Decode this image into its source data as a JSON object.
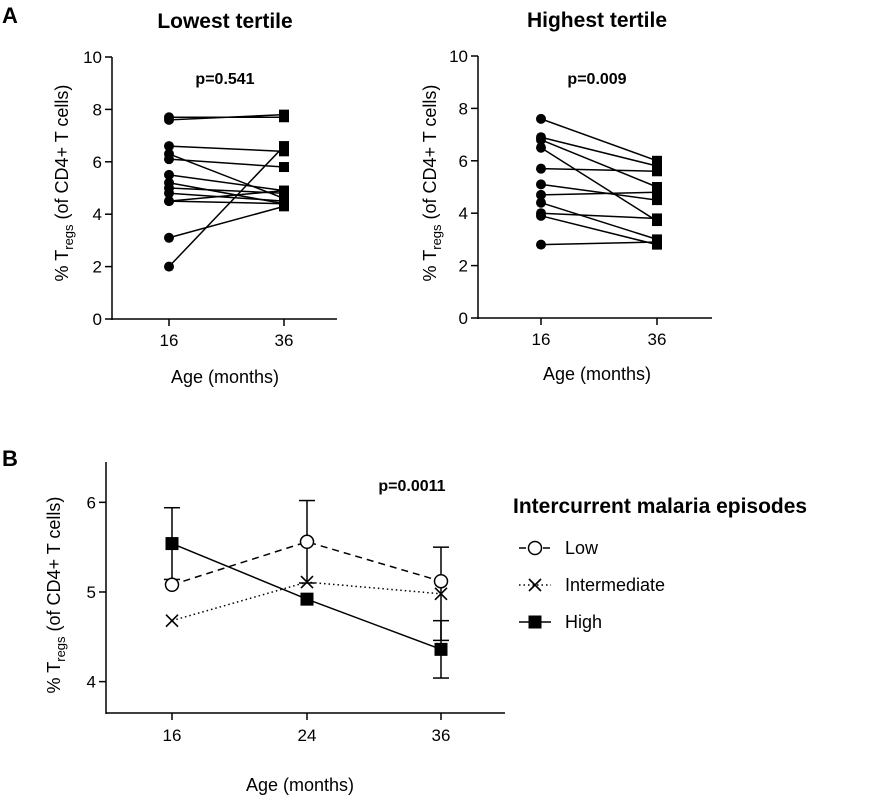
{
  "panel_a_letter": "A",
  "panel_b_letter": "B",
  "y_label_prefix": "% T",
  "y_label_sub": "regs",
  "y_label_suffix": " (of CD4+ T cells)",
  "colors": {
    "ink": "#000000",
    "background": "#ffffff"
  },
  "chart_data": [
    {
      "type": "line",
      "title": "Lowest tertile",
      "annotation": "p=0.541",
      "xlabel": "Age (months)",
      "ylabel": "% Tregs (of CD4+ T cells)",
      "x": [
        "16",
        "36"
      ],
      "ylim": [
        0,
        10
      ],
      "yticks": [
        0,
        2,
        4,
        6,
        8,
        10
      ],
      "markers": [
        "circle",
        "square"
      ],
      "pairs": [
        [
          7.7,
          7.7
        ],
        [
          7.6,
          7.8
        ],
        [
          6.6,
          6.4
        ],
        [
          6.3,
          4.6
        ],
        [
          6.1,
          5.8
        ],
        [
          5.5,
          4.9
        ],
        [
          5.2,
          4.4
        ],
        [
          5.0,
          4.8
        ],
        [
          4.8,
          4.5
        ],
        [
          4.5,
          4.4
        ],
        [
          4.5,
          4.9
        ],
        [
          3.1,
          4.3
        ],
        [
          2.0,
          6.6
        ]
      ]
    },
    {
      "type": "line",
      "title": "Highest tertile",
      "annotation": "p=0.009",
      "xlabel": "Age (months)",
      "ylabel": "% Tregs (of CD4+ T cells)",
      "x": [
        "16",
        "36"
      ],
      "ylim": [
        0,
        10
      ],
      "yticks": [
        0,
        2,
        4,
        6,
        8,
        10
      ],
      "markers": [
        "circle",
        "square"
      ],
      "pairs": [
        [
          7.6,
          6.0
        ],
        [
          6.9,
          5.8
        ],
        [
          6.8,
          5.0
        ],
        [
          6.5,
          3.7
        ],
        [
          5.7,
          5.6
        ],
        [
          5.1,
          4.5
        ],
        [
          4.7,
          4.8
        ],
        [
          4.4,
          3.0
        ],
        [
          4.0,
          3.8
        ],
        [
          3.9,
          2.8
        ],
        [
          2.8,
          2.9
        ]
      ]
    },
    {
      "type": "line",
      "title": "",
      "annotation": "p=0.0011",
      "xlabel": "Age (months)",
      "ylabel": "% Tregs (of CD4+ T cells)",
      "x": [
        "16",
        "24",
        "36"
      ],
      "ylim": [
        3.65,
        6.45
      ],
      "yticks": [
        4,
        5,
        6
      ],
      "legend_title": "Intercurrent malaria episodes",
      "legend_position": "right",
      "series": [
        {
          "name": "Low",
          "marker": "open-circle",
          "line": "dashed",
          "values": [
            5.08,
            5.56,
            5.12
          ],
          "error": [
            null,
            0.46,
            null
          ]
        },
        {
          "name": "Intermediate",
          "marker": "x",
          "line": "dotted",
          "values": [
            4.68,
            5.11,
            4.98
          ],
          "error": [
            null,
            null,
            0.52
          ]
        },
        {
          "name": "High",
          "marker": "filled-square",
          "line": "solid",
          "values": [
            5.54,
            4.92,
            4.36
          ],
          "error": [
            0.4,
            null,
            0.32
          ]
        }
      ]
    }
  ]
}
